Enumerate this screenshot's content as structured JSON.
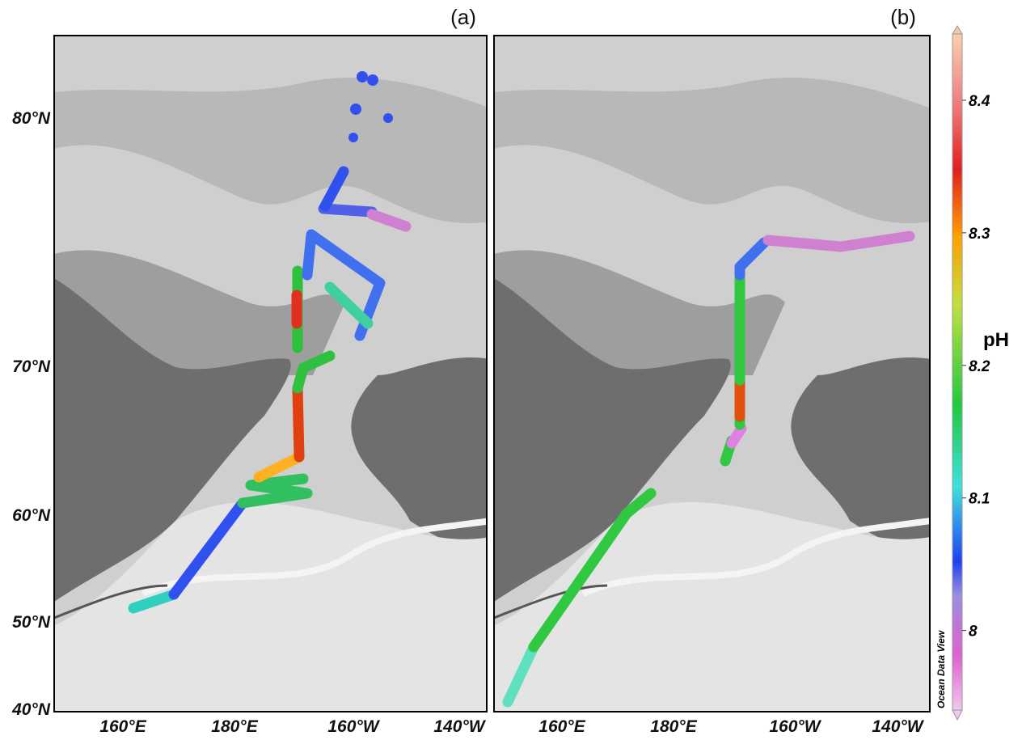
{
  "panels": [
    {
      "label": "(a)"
    },
    {
      "label": "(b)"
    }
  ],
  "lat_labels": [
    "80°N",
    "70°N",
    "60°N",
    "50°N",
    "40°N"
  ],
  "lon_labels": [
    "160°E",
    "180°E",
    "160°W",
    "140°W"
  ],
  "colorbar": {
    "title": "pH",
    "ticks": [
      8,
      8.1,
      8.2,
      8.3,
      8.4
    ],
    "lim": [
      7.94,
      8.45
    ]
  },
  "watermark": "Ocean Data View"
}
